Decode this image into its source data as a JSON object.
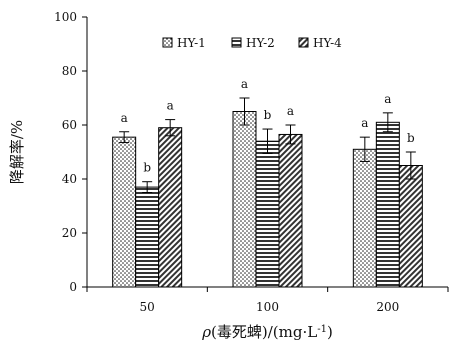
{
  "chart_data": {
    "type": "bar",
    "categories": [
      "50",
      "100",
      "200"
    ],
    "series": [
      {
        "name": "HY-1",
        "values": [
          55.5,
          65.0,
          51.0
        ],
        "errors": [
          2.0,
          5.0,
          4.5
        ],
        "letters": [
          "a",
          "a",
          "a"
        ],
        "pattern": "dots"
      },
      {
        "name": "HY-2",
        "values": [
          37.0,
          54.0,
          61.0
        ],
        "errors": [
          2.0,
          4.5,
          3.5
        ],
        "letters": [
          "b",
          "b",
          "a"
        ],
        "pattern": "horizontal-stripes"
      },
      {
        "name": "HY-4",
        "values": [
          59.0,
          56.5,
          45.0
        ],
        "errors": [
          3.0,
          3.5,
          5.0
        ],
        "letters": [
          "a",
          "a",
          "b"
        ],
        "pattern": "diagonal-stripes"
      }
    ],
    "ylabel": "降解率/%",
    "xlabel": {
      "italic": "ρ",
      "prefix": "(毒死蜱)/(mg·L",
      "superscript": "-1",
      "suffix": ")"
    },
    "ylim": [
      0,
      100
    ],
    "yticks": [
      "0",
      "20",
      "40",
      "60",
      "80",
      "100"
    ],
    "legend_position": "top",
    "grid": false
  }
}
